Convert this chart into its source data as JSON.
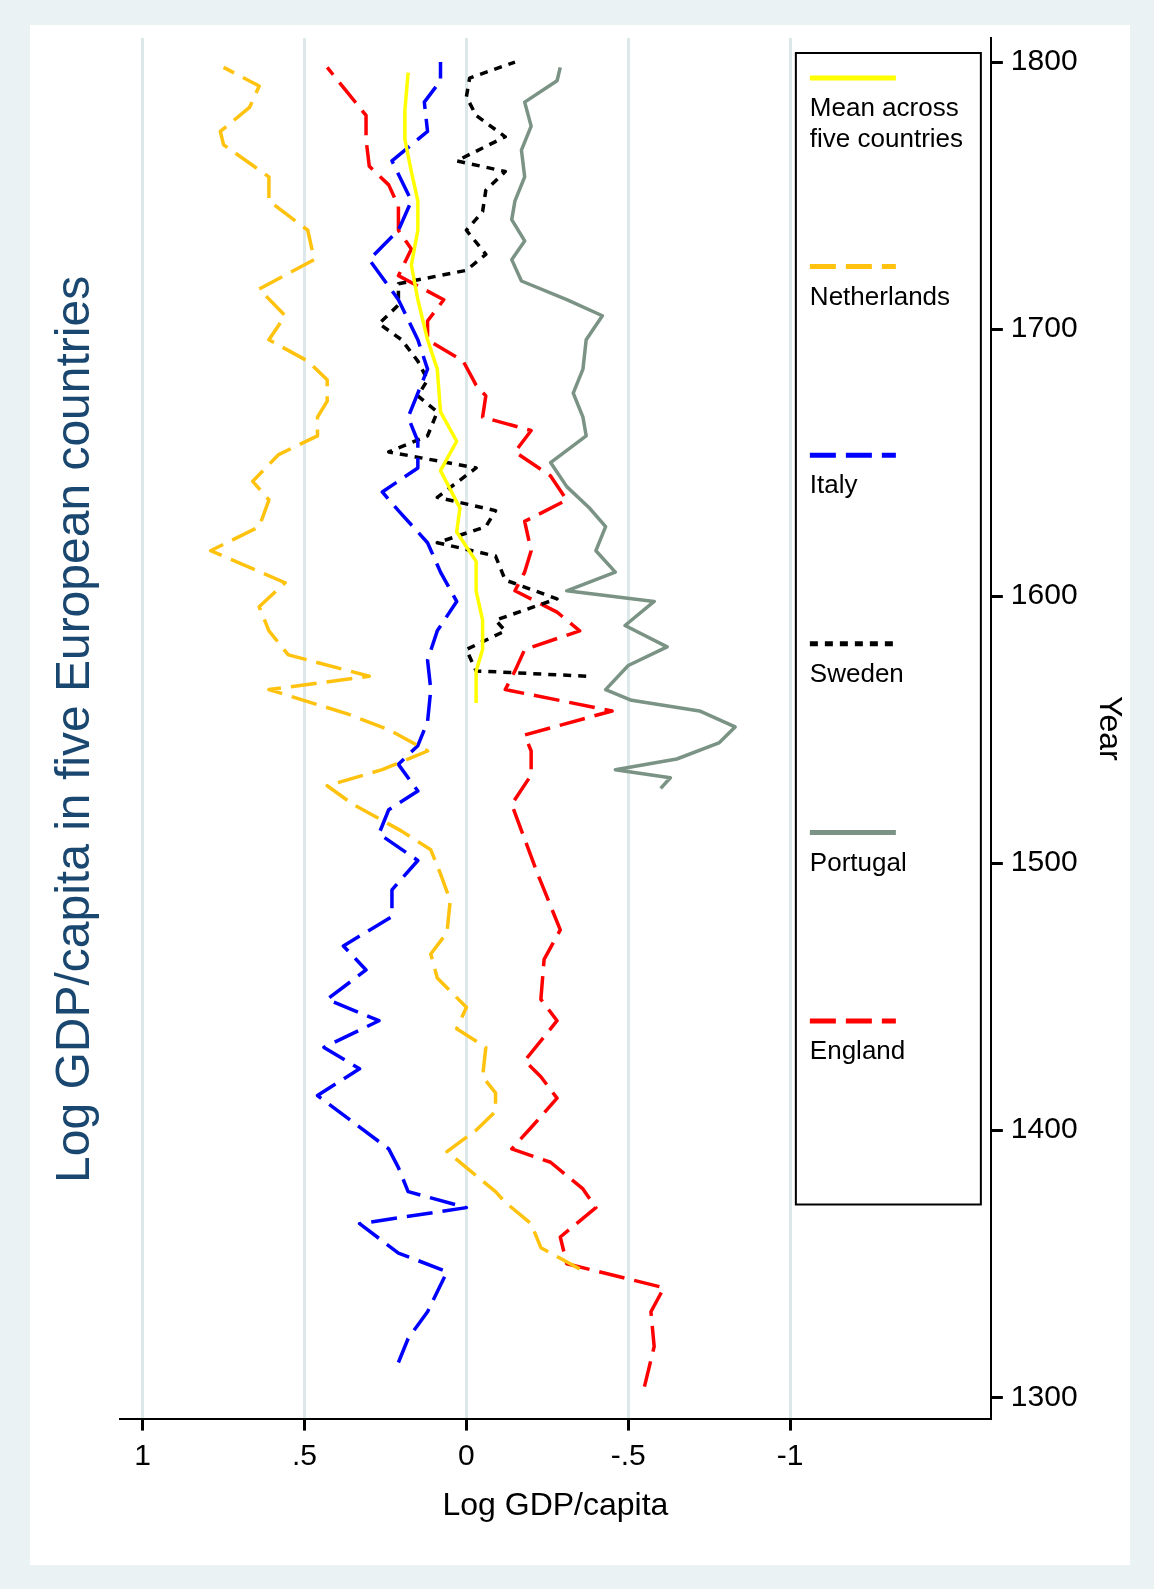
{
  "chart_data": {
    "type": "line",
    "title": "Log GDP/capita in five European countries",
    "xlabel": "Log GDP/capita",
    "ylabel": "Year",
    "xlim": [
      1.07,
      -1.62
    ],
    "xticks": [
      1,
      {
        "value": 0.5,
        "label": ".5"
      },
      0,
      {
        "value": -0.5,
        "label": "-.5"
      },
      -1
    ],
    "ylim": [
      1292,
      1809
    ],
    "yticks": [
      1300,
      1400,
      1500,
      1600,
      1700,
      1800
    ],
    "grid": "x",
    "legend": "right",
    "marker": "none",
    "series": [
      {
        "name": "Mean across five countries",
        "color": "#ffff00",
        "line_style": "solid",
        "values": [
          1560,
          1572,
          1580,
          1591,
          1602,
          1613,
          1624,
          1633,
          1647,
          1658,
          1669,
          1685,
          1696,
          1711,
          1724,
          1737,
          1748,
          1759,
          1771,
          1782,
          1796
        ],
        "x": [
          -0.03,
          -0.03,
          -0.05,
          -0.05,
          -0.03,
          -0.03,
          0.03,
          0.02,
          0.08,
          0.03,
          0.08,
          0.09,
          0.12,
          0.15,
          0.17,
          0.15,
          0.15,
          0.17,
          0.19,
          0.19,
          0.18
        ]
      },
      {
        "name": "Netherlands",
        "color": "#ffc20e",
        "line_style": "dashed",
        "values": [
          1348,
          1356,
          1365,
          1373,
          1377,
          1386,
          1392,
          1400,
          1407,
          1414,
          1420,
          1431,
          1438,
          1446,
          1457,
          1466,
          1474,
          1486,
          1496,
          1505,
          1512,
          1522,
          1529,
          1535,
          1542,
          1550,
          1556,
          1565,
          1570,
          1578,
          1587,
          1596,
          1605,
          1617,
          1626,
          1636,
          1643,
          1653,
          1660,
          1667,
          1673,
          1681,
          1688,
          1696,
          1705,
          1715,
          1726,
          1737,
          1748,
          1757,
          1769,
          1774,
          1783,
          1791,
          1798
        ],
        "x": [
          -0.35,
          -0.23,
          -0.2,
          -0.12,
          -0.09,
          0.0,
          0.06,
          -0.03,
          -0.09,
          -0.09,
          -0.05,
          -0.06,
          0.03,
          0.0,
          0.09,
          0.11,
          0.06,
          0.05,
          0.08,
          0.11,
          0.2,
          0.35,
          0.43,
          0.26,
          0.12,
          0.24,
          0.37,
          0.61,
          0.3,
          0.55,
          0.61,
          0.64,
          0.56,
          0.79,
          0.64,
          0.61,
          0.66,
          0.58,
          0.46,
          0.46,
          0.43,
          0.43,
          0.49,
          0.61,
          0.56,
          0.64,
          0.47,
          0.49,
          0.61,
          0.61,
          0.75,
          0.76,
          0.67,
          0.64,
          0.75
        ]
      },
      {
        "name": "Italy",
        "color": "#0000ff",
        "line_style": "dashed",
        "values": [
          1313,
          1322,
          1332,
          1347,
          1354,
          1365,
          1371,
          1377,
          1386,
          1393,
          1403,
          1413,
          1423,
          1431,
          1441,
          1449,
          1460,
          1469,
          1480,
          1490,
          1501,
          1511,
          1520,
          1527,
          1537,
          1544,
          1553,
          1565,
          1576,
          1587,
          1598,
          1609,
          1620,
          1632,
          1639,
          1648,
          1658,
          1667,
          1685,
          1696,
          1711,
          1726,
          1737,
          1748,
          1763,
          1774,
          1785,
          1793,
          1800
        ],
        "x": [
          0.21,
          0.18,
          0.12,
          0.06,
          0.21,
          0.33,
          0.0,
          0.18,
          0.21,
          0.24,
          0.35,
          0.46,
          0.33,
          0.44,
          0.27,
          0.43,
          0.31,
          0.38,
          0.23,
          0.23,
          0.15,
          0.27,
          0.24,
          0.15,
          0.21,
          0.15,
          0.12,
          0.11,
          0.12,
          0.09,
          0.03,
          0.08,
          0.12,
          0.21,
          0.26,
          0.15,
          0.15,
          0.18,
          0.12,
          0.15,
          0.21,
          0.3,
          0.21,
          0.17,
          0.23,
          0.12,
          0.13,
          0.08,
          0.08
        ]
      },
      {
        "name": "Sweden",
        "color": "#000000",
        "line_style": "dotted",
        "values": [
          1570,
          1572,
          1580,
          1587,
          1591,
          1599,
          1606,
          1615,
          1620,
          1626,
          1632,
          1637,
          1648,
          1654,
          1660,
          1669,
          1675,
          1681,
          1688,
          1696,
          1702,
          1709,
          1717,
          1722,
          1728,
          1737,
          1744,
          1752,
          1759,
          1763,
          1772,
          1780,
          1787,
          1794,
          1800
        ],
        "x": [
          -0.37,
          -0.03,
          0.0,
          -0.12,
          -0.09,
          -0.28,
          -0.12,
          -0.09,
          0.09,
          -0.06,
          -0.09,
          0.09,
          -0.03,
          0.24,
          0.12,
          0.09,
          0.15,
          0.12,
          0.15,
          0.2,
          0.27,
          0.21,
          0.21,
          0.0,
          -0.06,
          0.0,
          -0.05,
          -0.06,
          -0.12,
          0.03,
          -0.12,
          -0.03,
          0.0,
          -0.01,
          -0.15
        ]
      },
      {
        "name": "Portugal",
        "color": "#7b9385",
        "line_style": "solid",
        "values": [
          1528,
          1532,
          1535,
          1539,
          1545,
          1551,
          1557,
          1561,
          1565,
          1574,
          1581,
          1589,
          1598,
          1602,
          1609,
          1617,
          1626,
          1633,
          1641,
          1650,
          1660,
          1667,
          1676,
          1685,
          1696,
          1705,
          1711,
          1718,
          1726,
          1733,
          1741,
          1748,
          1757,
          1767,
          1776,
          1785,
          1793,
          1798
        ],
        "x": [
          -0.6,
          -0.63,
          -0.46,
          -0.65,
          -0.78,
          -0.83,
          -0.72,
          -0.51,
          -0.43,
          -0.5,
          -0.62,
          -0.49,
          -0.58,
          -0.31,
          -0.46,
          -0.4,
          -0.43,
          -0.38,
          -0.31,
          -0.26,
          -0.37,
          -0.36,
          -0.33,
          -0.36,
          -0.37,
          -0.42,
          -0.31,
          -0.17,
          -0.14,
          -0.18,
          -0.14,
          -0.15,
          -0.18,
          -0.17,
          -0.2,
          -0.18,
          -0.28,
          -0.29
        ]
      },
      {
        "name": "England",
        "color": "#ff0000",
        "line_style": "dashed",
        "values": [
          1304,
          1319,
          1332,
          1341,
          1350,
          1360,
          1371,
          1378,
          1388,
          1393,
          1401,
          1412,
          1420,
          1426,
          1441,
          1449,
          1464,
          1475,
          1484,
          1496,
          1509,
          1522,
          1533,
          1542,
          1548,
          1557,
          1565,
          1572,
          1580,
          1587,
          1594,
          1602,
          1609,
          1617,
          1628,
          1636,
          1645,
          1654,
          1662,
          1667,
          1675,
          1679,
          1688,
          1696,
          1703,
          1711,
          1720,
          1730,
          1737,
          1746,
          1754,
          1761,
          1771,
          1780,
          1789,
          1798
        ],
        "x": [
          -0.55,
          -0.58,
          -0.57,
          -0.61,
          -0.31,
          -0.29,
          -0.4,
          -0.36,
          -0.26,
          -0.14,
          -0.2,
          -0.28,
          -0.23,
          -0.18,
          -0.28,
          -0.23,
          -0.24,
          -0.29,
          -0.26,
          -0.22,
          -0.18,
          -0.14,
          -0.2,
          -0.2,
          -0.18,
          -0.45,
          -0.12,
          -0.15,
          -0.18,
          -0.35,
          -0.28,
          -0.15,
          -0.18,
          -0.2,
          -0.18,
          -0.31,
          -0.26,
          -0.15,
          -0.2,
          -0.05,
          -0.06,
          -0.03,
          0.01,
          0.12,
          0.12,
          0.07,
          0.21,
          0.17,
          0.21,
          0.21,
          0.24,
          0.3,
          0.31,
          0.31,
          0.37,
          0.43
        ]
      }
    ]
  }
}
